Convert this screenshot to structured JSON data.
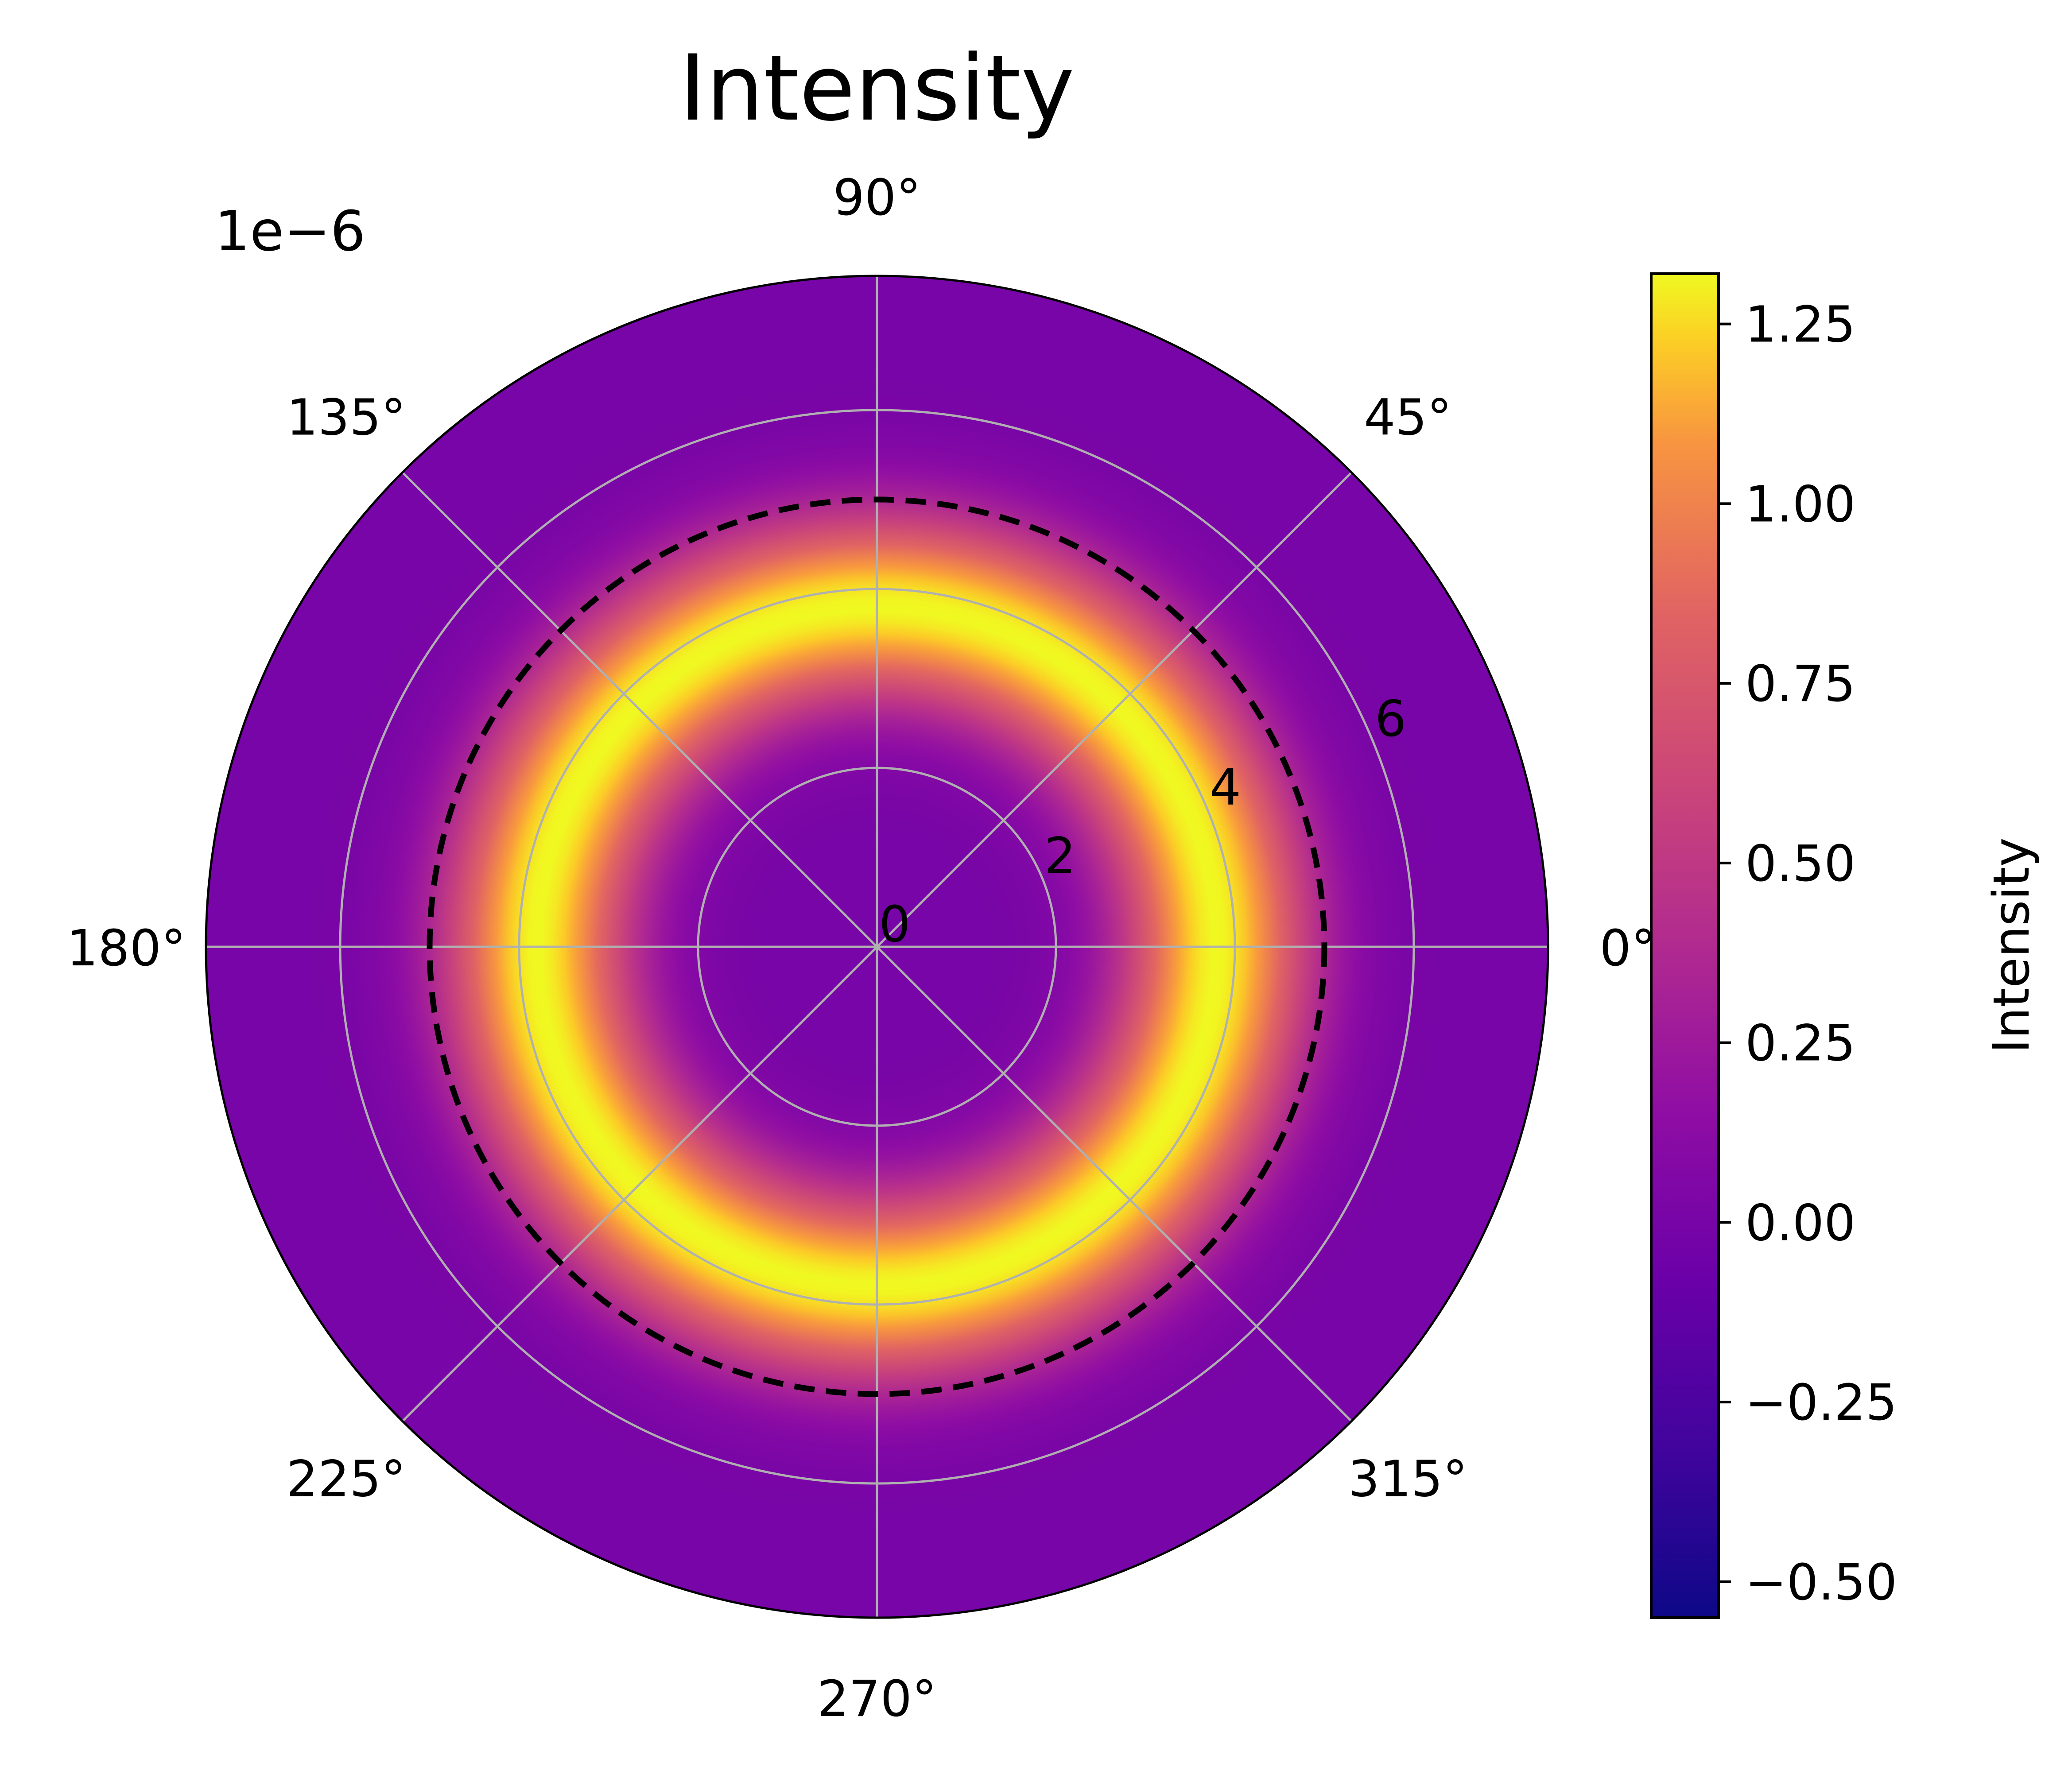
{
  "chart_data": {
    "type": "heatmap",
    "projection": "polar",
    "title": "Intensity",
    "offset_text": "1e−6",
    "theta_tick_labels": [
      "0°",
      "45°",
      "90°",
      "135°",
      "180°",
      "225°",
      "270°",
      "315°"
    ],
    "theta_ticks_deg": [
      0,
      45,
      90,
      135,
      180,
      225,
      270,
      315
    ],
    "r_ticks": [
      0,
      2,
      4,
      6
    ],
    "r_tick_labels": [
      "0",
      "2",
      "4",
      "6"
    ],
    "r_range": [
      0,
      7.5
    ],
    "grid": true,
    "dashed_circle_radius": 5.0,
    "ring_profile": {
      "peak_radius": 3.8,
      "peak_intensity": 1.32,
      "width": 1.05,
      "background_intensity": 0.0,
      "units": "1e-6"
    },
    "colorbar": {
      "label": "Intensity",
      "colormap": "plasma",
      "range": [
        -0.55,
        1.32
      ],
      "ticks": [
        -0.5,
        -0.25,
        0.0,
        0.25,
        0.5,
        0.75,
        1.0,
        1.25
      ],
      "tick_labels": [
        "−0.50",
        "−0.25",
        "0.00",
        "0.25",
        "0.50",
        "0.75",
        "1.00",
        "1.25"
      ],
      "position": "right"
    }
  }
}
